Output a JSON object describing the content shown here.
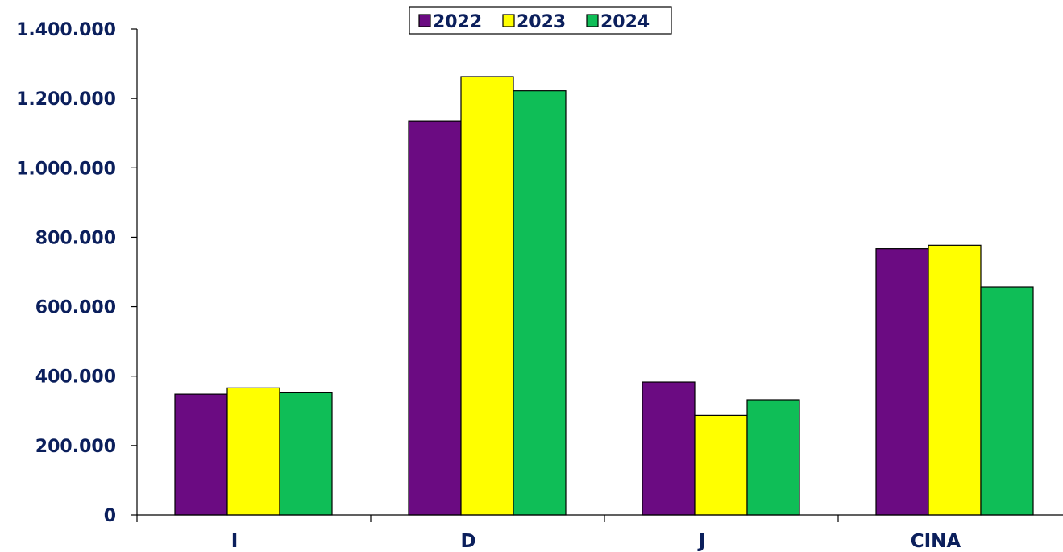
{
  "chart_data": {
    "type": "bar",
    "categories": [
      "I",
      "D",
      "J",
      "CINA"
    ],
    "series": [
      {
        "name": "2022",
        "color": "#6b0b82",
        "values": [
          348000,
          1135000,
          383000,
          767000
        ]
      },
      {
        "name": "2023",
        "color": "#ffff00",
        "values": [
          366000,
          1263000,
          287000,
          777000
        ]
      },
      {
        "name": "2024",
        "color": "#0fbe57",
        "values": [
          352000,
          1222000,
          332000,
          657000
        ]
      }
    ],
    "y_ticks": [
      "0",
      "200.000",
      "400.000",
      "600.000",
      "800.000",
      "1.000.000",
      "1.200.000",
      "1.400.000"
    ],
    "ylim": [
      0,
      1400000
    ],
    "title": "",
    "xlabel": "",
    "ylabel": "",
    "grid": false,
    "legend_position": "top-center"
  }
}
